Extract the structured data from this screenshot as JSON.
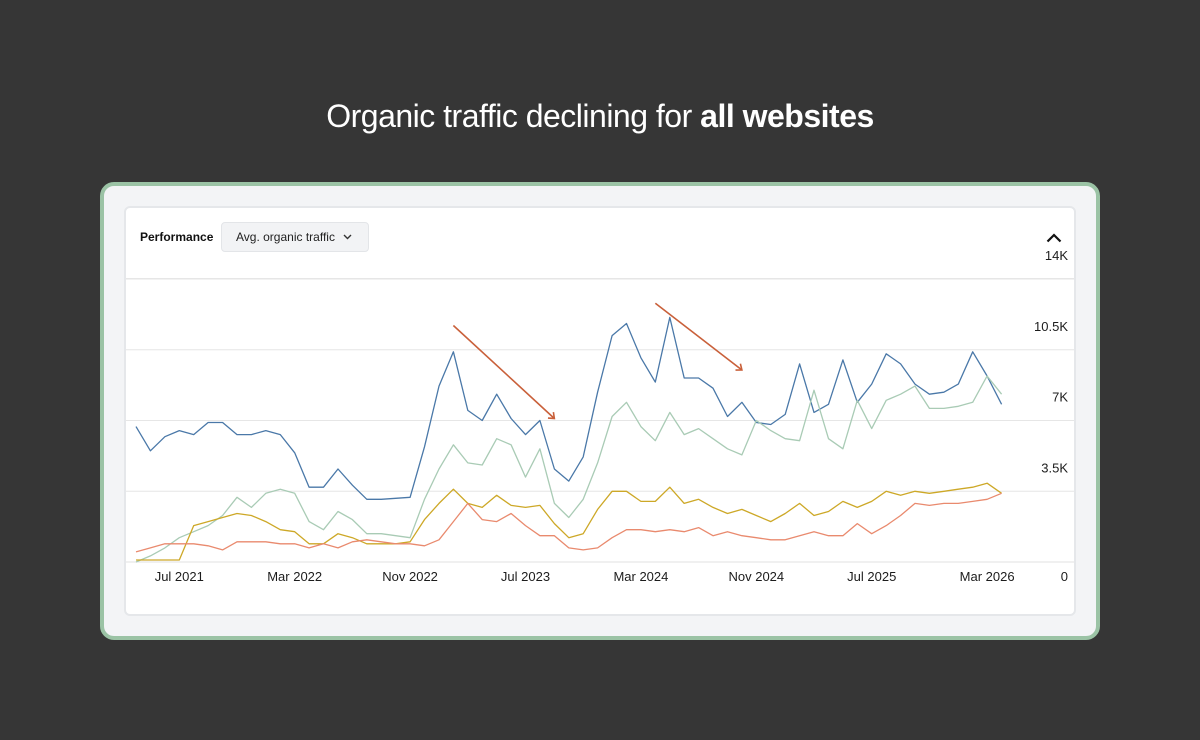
{
  "headline": {
    "light": "Organic traffic declining for ",
    "bold": "all websites"
  },
  "panel": {
    "title": "Performance",
    "metric_select": "Avg. organic traffic",
    "metric_chevron_icon": "chevron-down-icon",
    "collapse_icon": "chevron-up-icon"
  },
  "colors": {
    "background": "#363636",
    "card_border": "#9bc3a5",
    "annotation_arrow": "#c9603a"
  },
  "chart_data": {
    "type": "line",
    "x_ticks": [
      "Jul 2021",
      "Mar 2022",
      "Nov 2022",
      "Jul 2023",
      "Mar 2024",
      "Nov 2024",
      "Jul 2025",
      "Mar 2026"
    ],
    "y_ticks": [
      "0",
      "3.5K",
      "7K",
      "10.5K",
      "14K"
    ],
    "ylim": [
      0,
      14000
    ],
    "x_start": "2021-04",
    "x_end": "2026-05",
    "x": [
      "2021-04",
      "2021-05",
      "2021-06",
      "2021-07",
      "2021-08",
      "2021-09",
      "2021-10",
      "2021-11",
      "2021-12",
      "2022-01",
      "2022-02",
      "2022-03",
      "2022-04",
      "2022-05",
      "2022-06",
      "2022-07",
      "2022-08",
      "2022-09",
      "2022-10",
      "2022-11",
      "2022-12",
      "2023-01",
      "2023-02",
      "2023-03",
      "2023-04",
      "2023-05",
      "2023-06",
      "2023-07",
      "2023-08",
      "2023-09",
      "2023-10",
      "2023-11",
      "2023-12",
      "2024-01",
      "2024-02",
      "2024-03",
      "2024-04",
      "2024-05",
      "2024-06",
      "2024-07",
      "2024-08",
      "2024-09",
      "2024-10",
      "2024-11",
      "2024-12",
      "2025-01",
      "2025-02",
      "2025-03",
      "2025-04",
      "2025-05",
      "2025-06",
      "2025-07",
      "2025-08",
      "2025-09",
      "2025-10",
      "2025-11",
      "2025-12",
      "2026-01",
      "2026-02",
      "2026-03",
      "2026-04",
      "2026-05"
    ],
    "grid": true,
    "series": [
      {
        "color": "#4a78a8",
        "values": [
          6700,
          5500,
          6200,
          6500,
          6300,
          6900,
          6900,
          6300,
          6300,
          6500,
          6300,
          5400,
          3700,
          3700,
          4600,
          3800,
          3100,
          3100,
          3150,
          3200,
          5700,
          8700,
          10400,
          7500,
          7000,
          8300,
          7100,
          6300,
          7000,
          4600,
          4000,
          5200,
          8400,
          11200,
          11800,
          10100,
          8900,
          12100,
          9100,
          9100,
          8600,
          7200,
          7900,
          6900,
          6800,
          7300,
          9800,
          7400,
          7800,
          10000,
          7900,
          8800,
          10300,
          9800,
          8800,
          8300,
          8400,
          8800,
          10400,
          9200,
          7800,
          7800
        ],
        "visible_through": "2026-04"
      },
      {
        "color": "#a9cbb5",
        "values": [
          0,
          300,
          700,
          1200,
          1500,
          1800,
          2300,
          3200,
          2700,
          3400,
          3600,
          3400,
          2000,
          1600,
          2500,
          2100,
          1400,
          1400,
          1300,
          1200,
          3100,
          4600,
          5800,
          4900,
          4800,
          6100,
          5800,
          4200,
          5600,
          2900,
          2200,
          3100,
          4900,
          7200,
          7900,
          6700,
          6000,
          7400,
          6300,
          6600,
          6100,
          5600,
          5300,
          7000,
          6500,
          6100,
          6000,
          8500,
          6100,
          5600,
          8000,
          6600,
          8000,
          8300,
          8700,
          7600,
          7600,
          7700,
          7900,
          9200,
          8300,
          8300
        ],
        "visible_through": "2026-04"
      },
      {
        "color": "#cda827",
        "values": [
          100,
          100,
          100,
          100,
          1800,
          2000,
          2200,
          2400,
          2300,
          2000,
          1600,
          1500,
          900,
          900,
          1400,
          1200,
          900,
          900,
          900,
          1000,
          2100,
          2900,
          3600,
          2900,
          2700,
          3300,
          2800,
          2700,
          2800,
          1900,
          1200,
          1400,
          2600,
          3500,
          3500,
          3000,
          3000,
          3700,
          2900,
          3100,
          2700,
          2400,
          2600,
          2300,
          2000,
          2400,
          2900,
          2300,
          2500,
          3000,
          2700,
          3000,
          3500,
          3300,
          3500,
          3400,
          3500,
          3600,
          3700,
          3900,
          3400,
          3400
        ],
        "visible_through": "2026-04"
      },
      {
        "color": "#e98a6e",
        "values": [
          500,
          700,
          900,
          900,
          900,
          800,
          600,
          1000,
          1000,
          1000,
          900,
          900,
          700,
          900,
          700,
          1000,
          1100,
          1000,
          900,
          900,
          800,
          1100,
          2000,
          2900,
          2100,
          2000,
          2400,
          1800,
          1300,
          1300,
          700,
          600,
          700,
          1200,
          1600,
          1600,
          1500,
          1600,
          1500,
          1700,
          1300,
          1500,
          1300,
          1200,
          1100,
          1100,
          1300,
          1500,
          1300,
          1300,
          1900,
          1400,
          1800,
          2300,
          2900,
          2800,
          2900,
          2900,
          3000,
          3100,
          3400,
          2700
        ],
        "visible_through": "2026-04"
      }
    ],
    "annotations": [
      {
        "type": "arrow",
        "from": [
          "2023-02",
          11700
        ],
        "to": [
          "2023-09",
          7100
        ],
        "color": "#c9603a"
      },
      {
        "type": "arrow",
        "from": [
          "2024-04",
          12800
        ],
        "to": [
          "2024-10",
          9500
        ],
        "color": "#c9603a"
      }
    ]
  }
}
